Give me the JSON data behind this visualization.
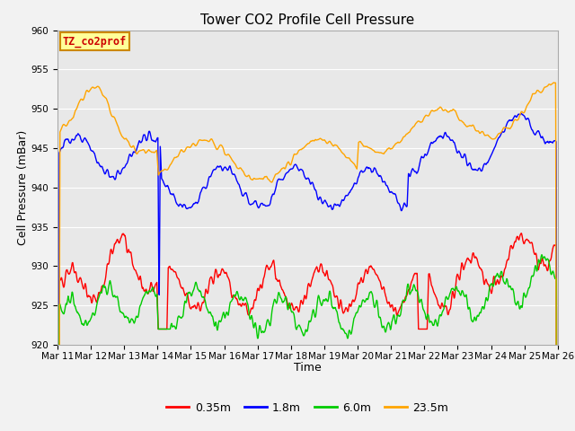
{
  "title": "Tower CO2 Profile Cell Pressure",
  "xlabel": "Time",
  "ylabel": "Cell Pressure (mBar)",
  "ylim": [
    920,
    960
  ],
  "xtick_labels": [
    "Mar 11",
    "Mar 12",
    "Mar 13",
    "Mar 14",
    "Mar 15",
    "Mar 16",
    "Mar 17",
    "Mar 18",
    "Mar 19",
    "Mar 20",
    "Mar 21",
    "Mar 22",
    "Mar 23",
    "Mar 24",
    "Mar 25",
    "Mar 26"
  ],
  "legend_labels": [
    "0.35m",
    "1.8m",
    "6.0m",
    "23.5m"
  ],
  "legend_colors": [
    "#ff0000",
    "#0000ff",
    "#00cc00",
    "#ffa500"
  ],
  "line_colors": [
    "#ff0000",
    "#0000ff",
    "#00cc00",
    "#ffa500"
  ],
  "annotation_text": "TZ_co2prof",
  "annotation_color": "#cc0000",
  "annotation_bg": "#ffff99",
  "annotation_border": "#cc8800",
  "plot_bg": "#e8e8e8",
  "fig_bg": "#f2f2f2",
  "grid_color": "#ffffff",
  "title_fontsize": 11,
  "axis_label_fontsize": 9,
  "tick_fontsize": 7.5,
  "legend_fontsize": 9
}
